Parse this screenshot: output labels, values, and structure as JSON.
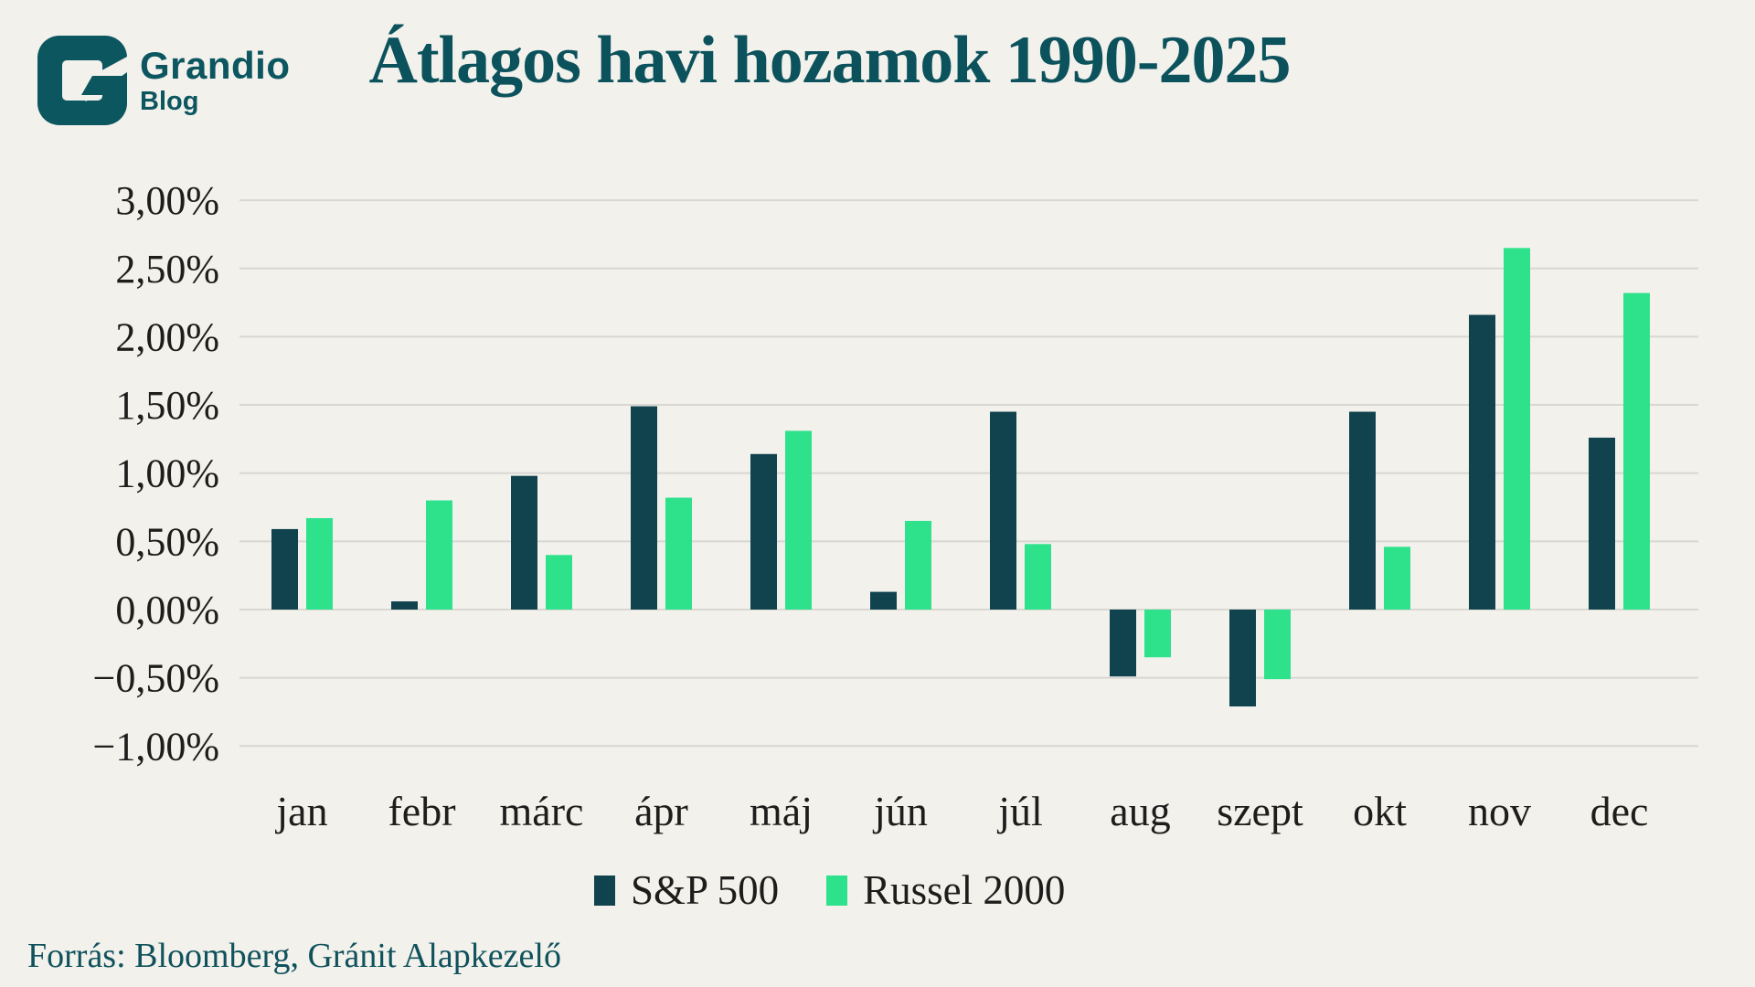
{
  "page": {
    "background": "#f2f1ec"
  },
  "logo": {
    "brand": "Grandio",
    "sub": "Blog",
    "color": "#0c5660"
  },
  "header": {
    "title": "Átlagos havi hozamok 1990-2025"
  },
  "source": {
    "text": "Forrás: Bloomberg, Gránit Alapkezelő"
  },
  "colors": {
    "background": "#f2f1ec",
    "gridline": "#d8d7d2",
    "axis_text": "#1d1d1b",
    "brand_teal": "#0c5660",
    "sp500_bar": "#11434f",
    "russel_bar": "#2ee28c"
  },
  "chart_data": {
    "type": "bar",
    "title": "Átlagos havi hozamok 1990-2025",
    "categories": [
      "jan",
      "febr",
      "márc",
      "ápr",
      "máj",
      "jún",
      "júl",
      "aug",
      "szept",
      "okt",
      "nov",
      "dec"
    ],
    "series": [
      {
        "name": "S&P 500",
        "color": "#11434f",
        "values": [
          0.59,
          0.06,
          0.98,
          1.49,
          1.14,
          0.13,
          1.45,
          -0.49,
          -0.71,
          1.45,
          2.16,
          1.26
        ]
      },
      {
        "name": "Russel 2000",
        "color": "#2ee28c",
        "values": [
          0.67,
          0.8,
          0.4,
          0.82,
          1.31,
          0.65,
          0.48,
          -0.35,
          -0.51,
          0.46,
          2.65,
          2.32
        ]
      }
    ],
    "xlabel": "",
    "ylabel": "",
    "ylim": [
      -1.0,
      3.0
    ],
    "ytick_step": 0.5,
    "ytick_labels": [
      "3,00%",
      "2,50%",
      "2,00%",
      "1,50%",
      "1,00%",
      "0,50%",
      "0,00%",
      "−0,50%",
      "−1,00%"
    ],
    "grid": true,
    "legend_position": "bottom"
  }
}
